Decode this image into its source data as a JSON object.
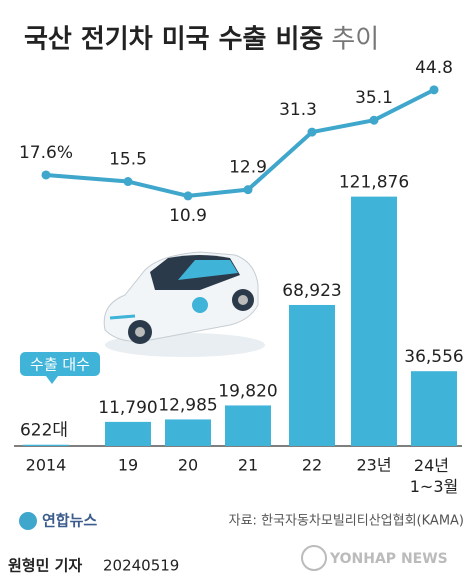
{
  "title": "국산 전기차 미국 수출 비중",
  "title_suffix": "추이",
  "chart_data": {
    "type": "bar_line",
    "categories": [
      "2014",
      "19",
      "20",
      "21",
      "22",
      "23년",
      "24년 1~3월"
    ],
    "series": [
      {
        "name": "수출 대수",
        "type": "bar",
        "color": "#3fb4d8",
        "values": [
          622,
          11790,
          12985,
          19820,
          68923,
          121876,
          36556
        ],
        "value_labels": [
          "622대",
          "11,790",
          "12,985",
          "19,820",
          "68,923",
          "121,876",
          "36,556"
        ]
      },
      {
        "type": "line",
        "axis": "y2",
        "color": "#3fa6cc",
        "values": [
          17.6,
          15.5,
          10.9,
          12.9,
          31.3,
          35.1,
          44.8
        ],
        "value_labels": [
          "17.6%",
          "15.5",
          "10.9",
          "12.9",
          "31.3",
          "35.1",
          "44.8"
        ]
      }
    ],
    "ylim": [
      0,
      130000
    ],
    "y2lim": [
      0,
      50
    ]
  },
  "source": "자료: 한국자동차모빌리티산업협회(KAMA)",
  "logo": "연합뉴스",
  "byline": "원형민 기자",
  "date": "20240519",
  "watermark": "YONHAP NEWS"
}
